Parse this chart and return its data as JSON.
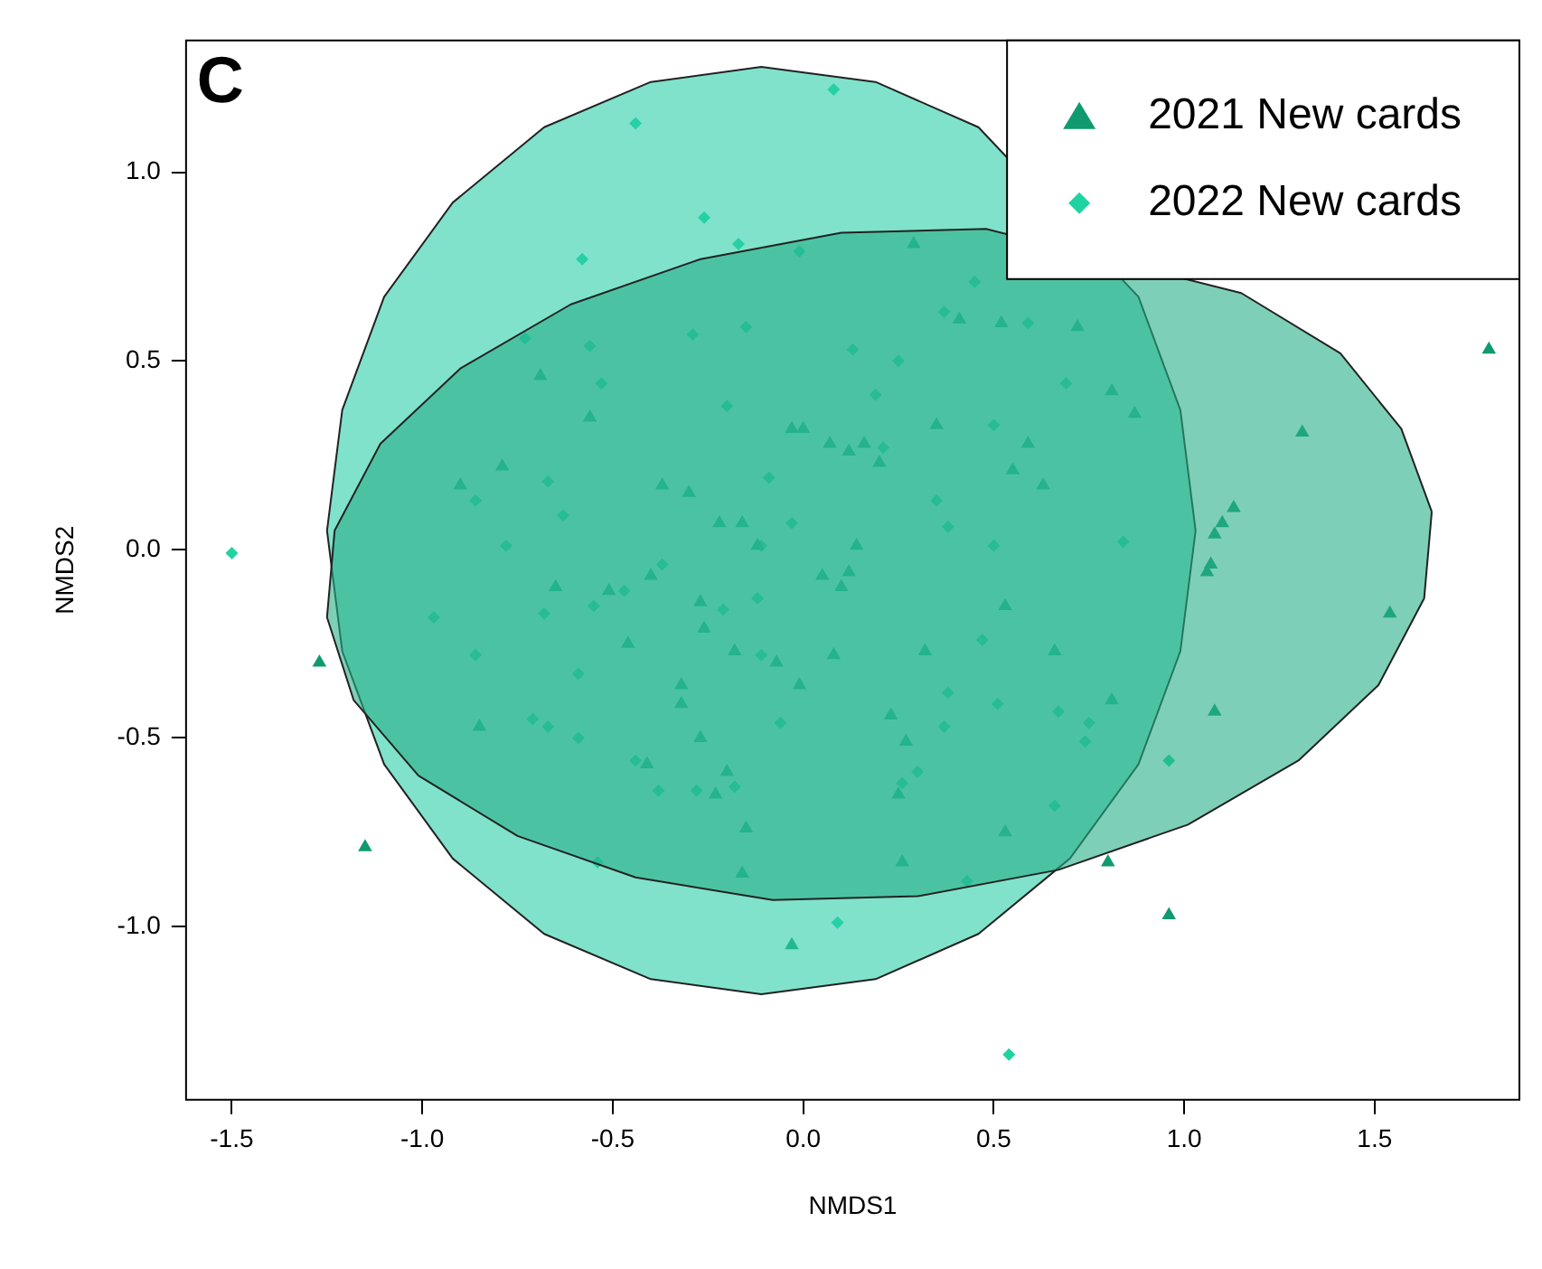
{
  "chart_data": {
    "type": "scatter",
    "xlabel": "NMDS1",
    "ylabel": "NMDS2",
    "annotations": [
      "C"
    ],
    "xlim": [
      -1.62,
      1.88
    ],
    "ylim": [
      -1.46,
      1.35
    ],
    "xticks": [
      -1.5,
      {
        "value": -1,
        "label": "-1.0"
      },
      -0.5,
      {
        "value": 0,
        "label": "0.0"
      },
      0.5,
      {
        "value": 1,
        "label": "1.0"
      },
      1.5
    ],
    "yticks": [
      {
        "value": -1,
        "label": "-1.0"
      },
      -0.5,
      {
        "value": 0,
        "label": "0.0"
      },
      0.5,
      {
        "value": 1,
        "label": "1.0"
      }
    ],
    "grid": false,
    "legend": "top right",
    "series": [
      {
        "type": "area",
        "color": "#28af89",
        "x": [
          1.65,
          1.57,
          1.41,
          1.15,
          0.84,
          0.48,
          0.1,
          -0.27,
          -0.61,
          -0.9,
          -1.11,
          -1.23,
          -1.25,
          -1.18,
          -1.01,
          -0.75,
          -0.44,
          -0.08,
          0.3,
          0.67,
          1.01,
          1.3,
          1.51,
          1.63,
          1.65
        ],
        "values": [
          0.1,
          0.32,
          0.52,
          0.68,
          null,
          0.85,
          0.84,
          0.77,
          0.65,
          0.48,
          0.28,
          0.05,
          -0.18,
          -0.4,
          -0.6,
          -0.76,
          -0.87,
          -0.93,
          -0.92,
          -0.85,
          -0.73,
          -0.56,
          -0.36,
          -0.13,
          0.1
        ]
      },
      {
        "type": "area",
        "color": "#2bcfa8",
        "x": [
          1.03,
          0.99,
          0.88,
          0.7,
          0.46,
          0.19,
          -0.11,
          -0.4,
          -0.68,
          -0.92,
          -1.1,
          -1.21,
          -1.25,
          -1.21,
          -1.1,
          -0.92,
          -0.68,
          -0.4,
          -0.11,
          0.19,
          0.46,
          0.7,
          0.88,
          0.99,
          1.03
        ],
        "values": [
          0.05,
          0.37,
          0.67,
          null,
          1.12,
          1.24,
          1.28,
          1.24,
          1.12,
          0.92,
          0.67,
          0.37,
          0.05,
          -0.27,
          -0.57,
          -0.82,
          -1.02,
          -1.14,
          -1.18,
          -1.14,
          -1.02,
          -0.82,
          -0.57,
          -0.27,
          0.05
        ]
      },
      {
        "name": "2021 New cards",
        "color": "#0f9a70",
        "marker": "triangle",
        "x": [
          1.8,
          1.31,
          1.13,
          1.1,
          1.08,
          1.07,
          1.06,
          1.08,
          1.54,
          0.96,
          0.8,
          -0.03,
          -1.15,
          -1.27,
          -0.85,
          -0.9,
          -0.79,
          -0.69,
          -0.56,
          -0.37,
          -0.3,
          -0.22,
          -0.16,
          -0.12,
          -0.03,
          0.0,
          0.07,
          0.12,
          0.16,
          0.2,
          0.29,
          0.35,
          0.41,
          0.52,
          0.72,
          0.81,
          0.87,
          0.59,
          0.55,
          0.63,
          0.53,
          0.32,
          0.23,
          0.27,
          0.25,
          0.26,
          0.53,
          0.66,
          0.81,
          -0.15,
          -0.16,
          -0.41,
          -0.32,
          -0.46,
          -0.32,
          -0.26,
          -0.18,
          -0.07,
          -0.01,
          0.08,
          0.1,
          0.12,
          0.14,
          0.05,
          -0.23,
          -0.2,
          -0.27,
          -0.65,
          -0.51,
          -0.4,
          -0.27
        ],
        "values": [
          0.53,
          0.31,
          0.11,
          0.07,
          0.04,
          -0.04,
          -0.06,
          -0.43,
          -0.17,
          -0.97,
          -0.83,
          -1.05,
          -0.79,
          -0.3,
          -0.47,
          0.17,
          0.22,
          0.46,
          0.35,
          0.17,
          0.15,
          0.07,
          0.07,
          0.01,
          0.32,
          0.32,
          0.28,
          0.26,
          0.28,
          0.23,
          0.81,
          0.33,
          0.61,
          0.6,
          0.59,
          0.42,
          0.36,
          0.28,
          0.21,
          0.17,
          -0.15,
          -0.27,
          -0.44,
          -0.51,
          -0.65,
          -0.83,
          -0.75,
          -0.27,
          -0.4,
          -0.74,
          -0.86,
          -0.57,
          -0.41,
          -0.25,
          -0.36,
          -0.21,
          -0.27,
          -0.3,
          -0.36,
          -0.28,
          -0.1,
          -0.06,
          0.01,
          -0.07,
          -0.65,
          -0.59,
          -0.5,
          -0.1,
          -0.11,
          -0.07,
          -0.14
        ]
      },
      {
        "name": "2022 New cards",
        "color": "#1fd3a0",
        "marker": "diamond",
        "x": [
          -1.5,
          0.08,
          -0.44,
          -0.26,
          -0.58,
          -0.17,
          -0.01,
          -0.73,
          -0.53,
          -0.56,
          -0.86,
          -0.97,
          -0.86,
          -0.71,
          -0.59,
          -0.54,
          -0.67,
          -0.44,
          -0.38,
          -0.28,
          -0.18,
          -0.55,
          -0.47,
          -0.37,
          -0.21,
          -0.12,
          -0.11,
          -0.06,
          0.09,
          0.43,
          0.54,
          0.96,
          0.84,
          0.66,
          0.74,
          0.75,
          0.67,
          0.51,
          0.47,
          0.3,
          0.26,
          0.37,
          0.38,
          0.5,
          0.38,
          0.35,
          0.21,
          0.19,
          0.13,
          0.25,
          0.37,
          0.45,
          0.59,
          0.69,
          0.5,
          -0.29,
          -0.15,
          -0.2,
          -0.09,
          -0.03,
          -0.67,
          -0.63,
          -0.78,
          -0.68,
          -0.59,
          -0.11
        ],
        "values": [
          -0.01,
          1.22,
          1.13,
          0.88,
          0.77,
          0.81,
          0.79,
          0.56,
          0.44,
          0.54,
          0.13,
          -0.18,
          -0.28,
          -0.45,
          -0.5,
          -0.83,
          -0.47,
          -0.56,
          -0.64,
          -0.64,
          -0.63,
          -0.15,
          -0.11,
          -0.04,
          -0.16,
          -0.13,
          -0.28,
          -0.46,
          -0.99,
          -0.88,
          -1.34,
          -0.56,
          0.02,
          -0.68,
          -0.51,
          -0.46,
          -0.43,
          -0.41,
          -0.24,
          -0.59,
          -0.62,
          -0.47,
          -0.38,
          0.01,
          0.06,
          0.13,
          0.27,
          0.41,
          0.53,
          0.5,
          0.63,
          0.71,
          0.6,
          0.44,
          0.33,
          0.57,
          0.59,
          0.38,
          0.19,
          0.07,
          0.18,
          0.09,
          0.01,
          -0.17,
          -0.33,
          0.01
        ]
      }
    ]
  }
}
